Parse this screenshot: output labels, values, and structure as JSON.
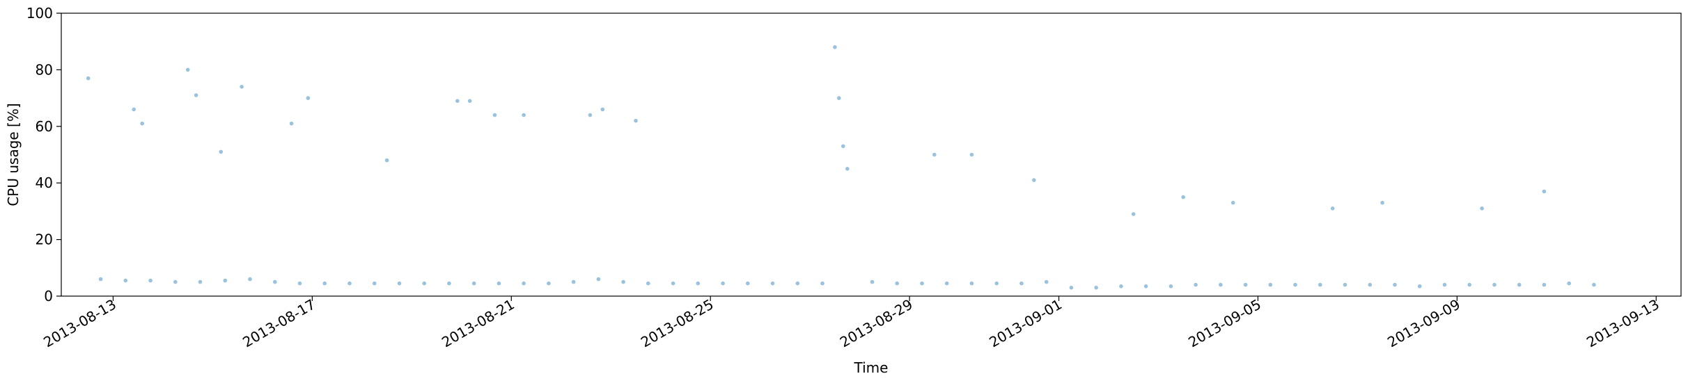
{
  "chart_data": {
    "type": "scatter",
    "title": "",
    "xlabel": "Time",
    "ylabel": "CPU usage [%]",
    "x_type": "date",
    "xlim": [
      "2013-08-11T23:00",
      "2013-09-13T12:00"
    ],
    "ylim": [
      0,
      100
    ],
    "grid": false,
    "legend": "none",
    "marker_color": "#1f77b4",
    "marker_alpha": 0.45,
    "x_ticks": [
      "2013-08-13",
      "2013-08-17",
      "2013-08-21",
      "2013-08-25",
      "2013-08-29",
      "2013-09-01",
      "2013-09-05",
      "2013-09-09",
      "2013-09-13"
    ],
    "y_ticks": [
      0,
      20,
      40,
      60,
      80,
      100
    ],
    "series": [
      {
        "x": [
          "2013-08-12T18:00",
          "2013-08-13T06:00",
          "2013-08-13T18:00",
          "2013-08-14T06:00",
          "2013-08-14T18:00",
          "2013-08-15T06:00",
          "2013-08-15T18:00",
          "2013-08-16T06:00",
          "2013-08-16T18:00",
          "2013-08-17T06:00",
          "2013-08-17T18:00",
          "2013-08-18T06:00",
          "2013-08-18T18:00",
          "2013-08-19T06:00",
          "2013-08-19T18:00",
          "2013-08-20T06:00",
          "2013-08-20T18:00",
          "2013-08-21T06:00",
          "2013-08-21T18:00",
          "2013-08-22T06:00",
          "2013-08-22T18:00",
          "2013-08-23T06:00",
          "2013-08-23T18:00",
          "2013-08-24T06:00",
          "2013-08-24T18:00",
          "2013-08-25T06:00",
          "2013-08-25T18:00",
          "2013-08-26T06:00",
          "2013-08-26T18:00",
          "2013-08-27T06:00",
          "2013-08-27T18:00",
          "2013-08-28T06:00",
          "2013-08-28T18:00",
          "2013-08-29T06:00",
          "2013-08-29T18:00",
          "2013-08-30T06:00",
          "2013-08-30T18:00",
          "2013-08-31T06:00",
          "2013-08-31T18:00",
          "2013-09-01T06:00",
          "2013-09-01T18:00",
          "2013-09-02T06:00",
          "2013-09-02T18:00",
          "2013-09-03T06:00",
          "2013-09-03T18:00",
          "2013-09-04T06:00",
          "2013-09-04T18:00",
          "2013-09-05T06:00",
          "2013-09-05T18:00",
          "2013-09-06T06:00",
          "2013-09-06T18:00",
          "2013-09-07T06:00",
          "2013-09-07T18:00",
          "2013-09-08T06:00",
          "2013-09-08T18:00",
          "2013-09-09T06:00",
          "2013-09-09T18:00",
          "2013-09-10T06:00",
          "2013-09-10T18:00",
          "2013-09-11T06:00",
          "2013-09-11T18:00"
        ],
        "y": [
          6,
          5.5,
          5.5,
          5,
          5,
          5.5,
          6,
          5,
          4.5,
          4.5,
          4.5,
          4.5,
          4.5,
          4.5,
          4.5,
          4.5,
          4.5,
          4.5,
          4.5,
          5,
          6,
          5,
          4.5,
          4.5,
          4.5,
          4.5,
          4.5,
          4.5,
          4.5,
          4.5,
          45,
          5,
          4.5,
          4.5,
          4.5,
          4.5,
          4.5,
          4.5,
          5,
          3,
          3,
          3.5,
          3.5,
          3.5,
          4,
          4,
          4,
          4,
          4,
          4,
          4,
          4,
          4,
          3.5,
          4,
          4,
          4,
          4,
          4,
          4.5,
          4
        ]
      }
    ],
    "spikes": {
      "x": [
        "2013-08-12T12:00",
        "2013-08-13T10:00",
        "2013-08-13T14:00",
        "2013-08-14T12:00",
        "2013-08-14T16:00",
        "2013-08-15T04:00",
        "2013-08-15T14:00",
        "2013-08-16T14:00",
        "2013-08-16T22:00",
        "2013-08-18T12:00",
        "2013-08-19T22:00",
        "2013-08-20T04:00",
        "2013-08-20T16:00",
        "2013-08-21T06:00",
        "2013-08-22T14:00",
        "2013-08-22T20:00",
        "2013-08-23T12:00",
        "2013-08-27T12:00",
        "2013-08-27T14:00",
        "2013-08-27T16:00",
        "2013-08-29T12:00",
        "2013-08-30T06:00",
        "2013-08-31T12:00",
        "2013-09-02T12:00",
        "2013-09-03T12:00",
        "2013-09-04T12:00",
        "2013-09-06T12:00",
        "2013-09-07T12:00",
        "2013-09-09T12:00",
        "2013-09-10T18:00"
      ],
      "y": [
        77,
        66,
        61,
        80,
        71,
        51,
        74,
        61,
        70,
        48,
        69,
        69,
        64,
        64,
        64,
        66,
        62,
        88,
        70,
        53,
        50,
        50,
        41,
        29,
        35,
        33,
        31,
        33,
        31,
        37
      ]
    }
  }
}
